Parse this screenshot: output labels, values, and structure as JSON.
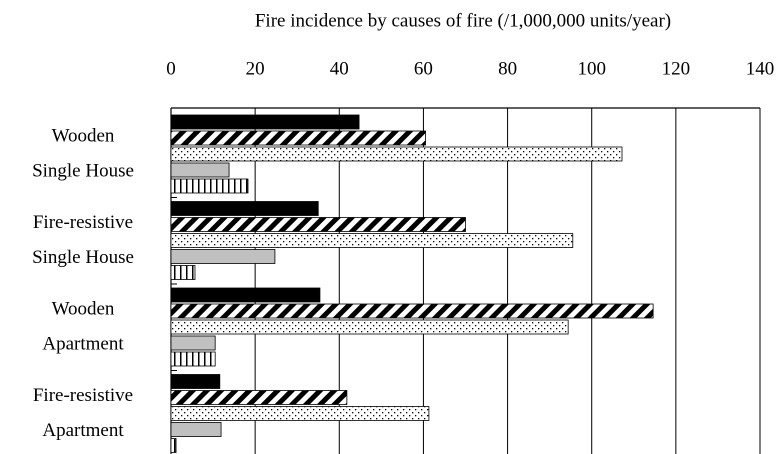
{
  "chart_data": {
    "type": "bar",
    "orientation": "horizontal",
    "title": "Fire incidence by causes of fire (/1,000,000 units/year)",
    "categories": [
      [
        "Wooden",
        "Single House"
      ],
      [
        "Fire-resistive",
        "Single House"
      ],
      [
        "Wooden",
        "Apartment"
      ],
      [
        "Fire-resistive",
        "Apartment"
      ]
    ],
    "series": [
      {
        "color": "#000000",
        "pattern": "solid",
        "values": [
          44.7,
          35,
          35.4,
          11.6
        ]
      },
      {
        "color": "#000000",
        "pattern": "diagonal",
        "values": [
          60.5,
          70,
          114.6,
          41.8
        ]
      },
      {
        "color": "#000000",
        "pattern": "dots",
        "values": [
          107.2,
          95.5,
          94.4,
          61.3
        ]
      },
      {
        "color": "#c0c0c0",
        "pattern": "solid",
        "values": [
          13.8,
          24.7,
          10.5,
          11.9
        ]
      },
      {
        "color": "#000000",
        "pattern": "vertical",
        "values": [
          18.3,
          5.7,
          10.5,
          1.2
        ]
      }
    ],
    "xlim": [
      0,
      140
    ],
    "xticks": [
      0,
      20,
      40,
      60,
      80,
      100,
      120,
      140
    ],
    "grid": true
  }
}
